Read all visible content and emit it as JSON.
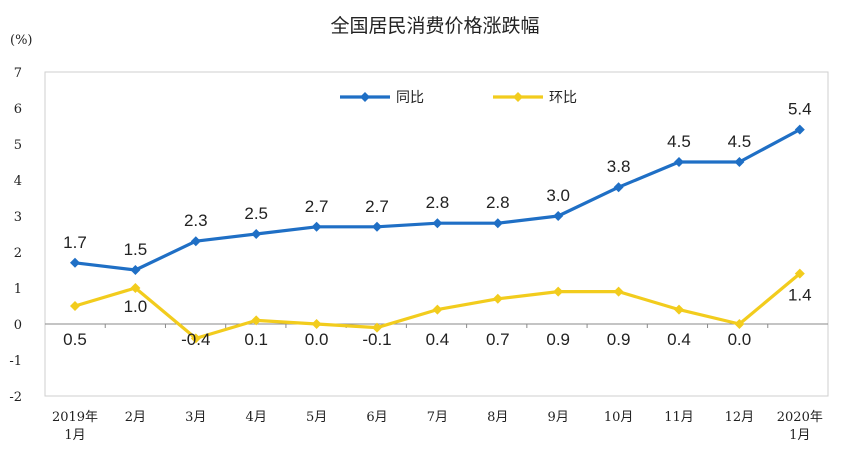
{
  "chart_data": {
    "type": "line",
    "title": "全国居民消费价格涨跌幅",
    "unit": "(%)",
    "categories": [
      [
        "2019年",
        "1月"
      ],
      [
        "2月"
      ],
      [
        "3月"
      ],
      [
        "4月"
      ],
      [
        "5月"
      ],
      [
        "6月"
      ],
      [
        "7月"
      ],
      [
        "8月"
      ],
      [
        "9月"
      ],
      [
        "10月"
      ],
      [
        "11月"
      ],
      [
        "12月"
      ],
      [
        "2020年",
        "1月"
      ]
    ],
    "ylim": [
      -2,
      7
    ],
    "yticks": [
      -2,
      -1,
      0,
      1,
      2,
      3,
      4,
      5,
      6,
      7
    ],
    "grid": false,
    "legend_position": "top-center",
    "series": [
      {
        "name": "同比",
        "color": "#1f6fc5",
        "values": [
          1.7,
          1.5,
          2.3,
          2.5,
          2.7,
          2.7,
          2.8,
          2.8,
          3.0,
          3.8,
          4.5,
          4.5,
          5.4
        ],
        "labels": [
          "1.7",
          "1.5",
          "2.3",
          "2.5",
          "2.7",
          "2.7",
          "2.8",
          "2.8",
          "3.0",
          "3.8",
          "4.5",
          "4.5",
          "5.4"
        ]
      },
      {
        "name": "环比",
        "color": "#f2cc1d",
        "values": [
          0.5,
          1.0,
          -0.4,
          0.1,
          0.0,
          -0.1,
          0.4,
          0.7,
          0.9,
          0.9,
          0.4,
          0.0,
          1.4
        ],
        "labels": [
          "0.5",
          "1.0",
          "-0.4",
          "0.1",
          "0.0",
          "-0.1",
          "0.4",
          "0.7",
          "0.9",
          "0.9",
          "0.4",
          "0.0",
          "1.4"
        ]
      }
    ]
  }
}
